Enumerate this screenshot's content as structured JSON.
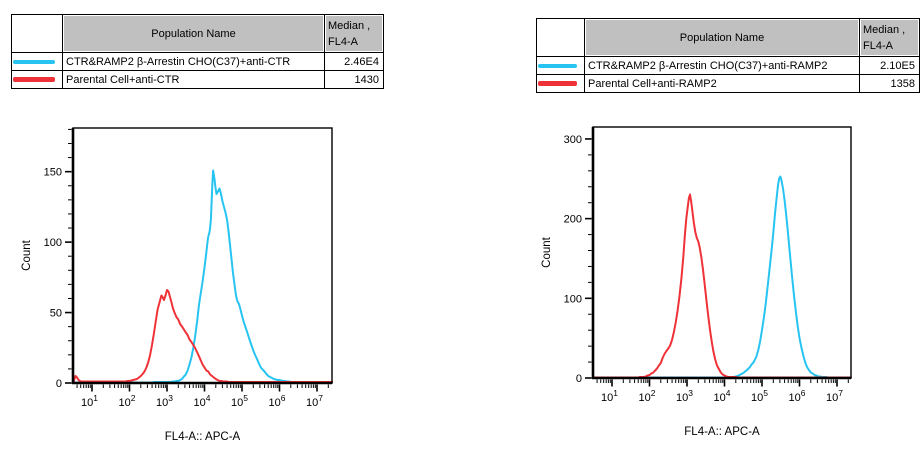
{
  "tables": [
    {
      "header": {
        "population": "Population Name",
        "median_l1": "Median ,",
        "median_l2": "FL4-A"
      },
      "rows": [
        {
          "swatch_color": "#27c4f2",
          "name": "CTR&RAMP2 β-Arrestin CHO(C37)+anti-CTR",
          "median": "2.46E4"
        },
        {
          "swatch_color": "#ef3237",
          "name": "Parental Cell+anti-CTR",
          "median": "1430"
        }
      ]
    },
    {
      "header": {
        "population": "Population Name",
        "median_l1": "Median ,",
        "median_l2": "FL4-A"
      },
      "rows": [
        {
          "swatch_color": "#27c4f2",
          "name": "CTR&RAMP2 β-Arrestin CHO(C37)+anti-RAMP2",
          "median": "2.10E5"
        },
        {
          "swatch_color": "#ef3237",
          "name": "Parental Cell+anti-RAMP2",
          "median": "1358"
        }
      ]
    }
  ],
  "chart_data": [
    {
      "type": "line",
      "subtype": "flow-histogram",
      "xlabel": "FL4-A:: APC-A",
      "ylabel": "Count",
      "xscale": "log",
      "x_tick_exponents": [
        1,
        2,
        3,
        4,
        5,
        6,
        7
      ],
      "xlim_log": [
        0.5,
        7.42
      ],
      "y_ticks": [
        0,
        50,
        100,
        150
      ],
      "y_minor_step": 10,
      "ylim": [
        0,
        181
      ],
      "grid": false,
      "legend": "table-above",
      "series": [
        {
          "name": "CTR&RAMP2 β-Arrestin CHO(C37)+anti-CTR",
          "color": "#27c4f2",
          "median": "2.46E4",
          "points": [
            [
              0.5,
              0.5
            ],
            [
              2.5,
              0.5
            ],
            [
              3.0,
              0.6
            ],
            [
              3.2,
              1
            ],
            [
              3.3,
              1.5
            ],
            [
              3.4,
              3
            ],
            [
              3.5,
              6
            ],
            [
              3.55,
              9
            ],
            [
              3.6,
              13
            ],
            [
              3.65,
              18
            ],
            [
              3.7,
              25
            ],
            [
              3.75,
              33
            ],
            [
              3.8,
              43
            ],
            [
              3.85,
              55
            ],
            [
              3.9,
              64
            ],
            [
              3.95,
              72
            ],
            [
              4.0,
              82
            ],
            [
              4.05,
              93
            ],
            [
              4.08,
              100
            ],
            [
              4.1,
              104
            ],
            [
              4.13,
              107
            ],
            [
              4.15,
              110
            ],
            [
              4.17,
              116
            ],
            [
              4.19,
              128
            ],
            [
              4.21,
              142
            ],
            [
              4.23,
              151
            ],
            [
              4.26,
              146
            ],
            [
              4.29,
              139
            ],
            [
              4.32,
              134
            ],
            [
              4.36,
              136
            ],
            [
              4.4,
              138
            ],
            [
              4.44,
              134
            ],
            [
              4.48,
              129
            ],
            [
              4.52,
              125
            ],
            [
              4.56,
              121
            ],
            [
              4.6,
              116
            ],
            [
              4.64,
              108
            ],
            [
              4.68,
              98
            ],
            [
              4.72,
              88
            ],
            [
              4.76,
              78
            ],
            [
              4.8,
              70
            ],
            [
              4.84,
              62
            ],
            [
              4.88,
              58
            ],
            [
              4.92,
              56
            ],
            [
              4.96,
              52
            ],
            [
              5.0,
              48
            ],
            [
              5.05,
              43
            ],
            [
              5.1,
              39
            ],
            [
              5.15,
              35
            ],
            [
              5.2,
              31
            ],
            [
              5.25,
              27
            ],
            [
              5.3,
              23
            ],
            [
              5.35,
              20
            ],
            [
              5.4,
              17
            ],
            [
              5.45,
              14
            ],
            [
              5.5,
              11
            ],
            [
              5.6,
              8
            ],
            [
              5.7,
              5
            ],
            [
              5.8,
              3.5
            ],
            [
              5.9,
              2.5
            ],
            [
              6.0,
              2
            ],
            [
              6.1,
              1.5
            ],
            [
              6.2,
              1
            ],
            [
              6.4,
              0.7
            ],
            [
              6.8,
              0.5
            ],
            [
              7.42,
              0.5
            ]
          ]
        },
        {
          "name": "Parental Cell+anti-CTR",
          "color": "#ef3237",
          "median": "1430",
          "points": [
            [
              0.5,
              0
            ],
            [
              0.53,
              3
            ],
            [
              0.56,
              5
            ],
            [
              0.6,
              4
            ],
            [
              0.64,
              2
            ],
            [
              0.7,
              1
            ],
            [
              1.3,
              1
            ],
            [
              1.6,
              1
            ],
            [
              1.9,
              1
            ],
            [
              2.0,
              1.5
            ],
            [
              2.1,
              2
            ],
            [
              2.2,
              3
            ],
            [
              2.3,
              5
            ],
            [
              2.4,
              8
            ],
            [
              2.45,
              11
            ],
            [
              2.5,
              15
            ],
            [
              2.55,
              20
            ],
            [
              2.6,
              27
            ],
            [
              2.65,
              35
            ],
            [
              2.7,
              44
            ],
            [
              2.75,
              52
            ],
            [
              2.8,
              57
            ],
            [
              2.85,
              62
            ],
            [
              2.88,
              61
            ],
            [
              2.92,
              59
            ],
            [
              2.96,
              62
            ],
            [
              3.0,
              66
            ],
            [
              3.04,
              65
            ],
            [
              3.08,
              61
            ],
            [
              3.12,
              57
            ],
            [
              3.16,
              53
            ],
            [
              3.2,
              50
            ],
            [
              3.25,
              47
            ],
            [
              3.3,
              45
            ],
            [
              3.35,
              42
            ],
            [
              3.4,
              40
            ],
            [
              3.45,
              38
            ],
            [
              3.5,
              36
            ],
            [
              3.55,
              34
            ],
            [
              3.6,
              31
            ],
            [
              3.65,
              29
            ],
            [
              3.7,
              27
            ],
            [
              3.75,
              25
            ],
            [
              3.8,
              22
            ],
            [
              3.85,
              19
            ],
            [
              3.9,
              16
            ],
            [
              3.95,
              13
            ],
            [
              4.0,
              11
            ],
            [
              4.05,
              9
            ],
            [
              4.1,
              8
            ],
            [
              4.15,
              6
            ],
            [
              4.2,
              5
            ],
            [
              4.3,
              3
            ],
            [
              4.4,
              1.5
            ],
            [
              4.5,
              1
            ],
            [
              4.7,
              0.8
            ],
            [
              5.5,
              0.8
            ],
            [
              6.5,
              0.8
            ],
            [
              7.42,
              0.8
            ]
          ]
        }
      ]
    },
    {
      "type": "line",
      "subtype": "flow-histogram",
      "xlabel": "FL4-A:: APC-A",
      "ylabel": "Count",
      "xscale": "log",
      "x_tick_exponents": [
        1,
        2,
        3,
        4,
        5,
        6,
        7
      ],
      "xlim_log": [
        0.5,
        7.37
      ],
      "y_ticks": [
        0,
        100,
        200,
        300
      ],
      "y_minor_step": 20,
      "ylim": [
        0,
        315
      ],
      "grid": false,
      "legend": "table-above",
      "series": [
        {
          "name": "CTR&RAMP2 β-Arrestin CHO(C37)+anti-RAMP2",
          "color": "#27c4f2",
          "median": "2.10E5",
          "points": [
            [
              0.5,
              0.4
            ],
            [
              3.5,
              0.4
            ],
            [
              4.0,
              0.6
            ],
            [
              4.2,
              1
            ],
            [
              4.3,
              2
            ],
            [
              4.4,
              3.5
            ],
            [
              4.5,
              6
            ],
            [
              4.6,
              10
            ],
            [
              4.68,
              14
            ],
            [
              4.72,
              17
            ],
            [
              4.76,
              19
            ],
            [
              4.8,
              22
            ],
            [
              4.85,
              27
            ],
            [
              4.9,
              35
            ],
            [
              4.95,
              46
            ],
            [
              5.0,
              60
            ],
            [
              5.05,
              76
            ],
            [
              5.1,
              94
            ],
            [
              5.15,
              114
            ],
            [
              5.2,
              136
            ],
            [
              5.25,
              158
            ],
            [
              5.3,
              182
            ],
            [
              5.35,
              208
            ],
            [
              5.4,
              230
            ],
            [
              5.43,
              243
            ],
            [
              5.46,
              251
            ],
            [
              5.49,
              253
            ],
            [
              5.52,
              248
            ],
            [
              5.56,
              238
            ],
            [
              5.6,
              224
            ],
            [
              5.64,
              207
            ],
            [
              5.68,
              188
            ],
            [
              5.72,
              168
            ],
            [
              5.76,
              148
            ],
            [
              5.8,
              128
            ],
            [
              5.85,
              105
            ],
            [
              5.9,
              84
            ],
            [
              5.95,
              66
            ],
            [
              6.0,
              50
            ],
            [
              6.05,
              38
            ],
            [
              6.1,
              28
            ],
            [
              6.15,
              20
            ],
            [
              6.2,
              14
            ],
            [
              6.25,
              10
            ],
            [
              6.3,
              7
            ],
            [
              6.4,
              4
            ],
            [
              6.5,
              2
            ],
            [
              6.6,
              1.2
            ],
            [
              6.8,
              0.8
            ],
            [
              7.37,
              0.8
            ]
          ]
        },
        {
          "name": "Parental Cell+anti-RAMP2",
          "color": "#ef3237",
          "median": "1358",
          "points": [
            [
              0.5,
              0.8
            ],
            [
              1.6,
              0.8
            ],
            [
              1.8,
              1
            ],
            [
              1.9,
              2
            ],
            [
              2.0,
              4
            ],
            [
              2.1,
              7
            ],
            [
              2.2,
              12
            ],
            [
              2.3,
              19
            ],
            [
              2.35,
              25
            ],
            [
              2.4,
              30
            ],
            [
              2.45,
              34
            ],
            [
              2.5,
              37
            ],
            [
              2.55,
              41
            ],
            [
              2.6,
              48
            ],
            [
              2.65,
              58
            ],
            [
              2.7,
              70
            ],
            [
              2.75,
              85
            ],
            [
              2.8,
              103
            ],
            [
              2.85,
              125
            ],
            [
              2.9,
              152
            ],
            [
              2.94,
              178
            ],
            [
              2.98,
              200
            ],
            [
              3.02,
              215
            ],
            [
              3.05,
              226
            ],
            [
              3.08,
              230
            ],
            [
              3.11,
              222
            ],
            [
              3.14,
              210
            ],
            [
              3.18,
              195
            ],
            [
              3.22,
              183
            ],
            [
              3.26,
              176
            ],
            [
              3.3,
              171
            ],
            [
              3.34,
              163
            ],
            [
              3.38,
              152
            ],
            [
              3.42,
              138
            ],
            [
              3.46,
              122
            ],
            [
              3.5,
              105
            ],
            [
              3.54,
              88
            ],
            [
              3.58,
              72
            ],
            [
              3.62,
              58
            ],
            [
              3.66,
              45
            ],
            [
              3.7,
              34
            ],
            [
              3.75,
              24
            ],
            [
              3.8,
              16
            ],
            [
              3.85,
              11
            ],
            [
              3.9,
              7
            ],
            [
              3.95,
              4.5
            ],
            [
              4.0,
              3
            ],
            [
              4.05,
              2
            ],
            [
              4.1,
              1.5
            ],
            [
              4.2,
              1
            ],
            [
              4.4,
              0.9
            ],
            [
              5.0,
              0.9
            ],
            [
              6.0,
              0.9
            ],
            [
              7.37,
              0.9
            ]
          ]
        }
      ]
    }
  ]
}
